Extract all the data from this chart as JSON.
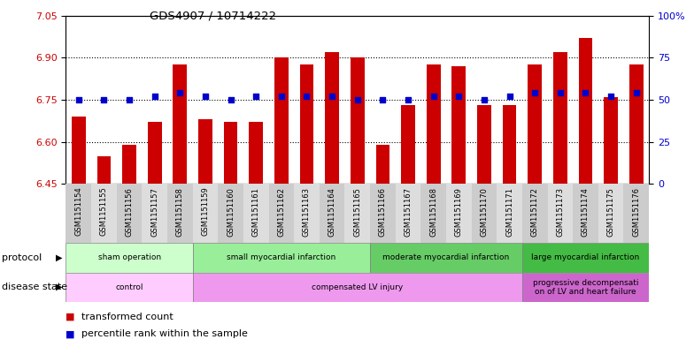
{
  "title": "GDS4907 / 10714222",
  "samples": [
    "GSM1151154",
    "GSM1151155",
    "GSM1151156",
    "GSM1151157",
    "GSM1151158",
    "GSM1151159",
    "GSM1151160",
    "GSM1151161",
    "GSM1151162",
    "GSM1151163",
    "GSM1151164",
    "GSM1151165",
    "GSM1151166",
    "GSM1151167",
    "GSM1151168",
    "GSM1151169",
    "GSM1151170",
    "GSM1151171",
    "GSM1151172",
    "GSM1151173",
    "GSM1151174",
    "GSM1151175",
    "GSM1151176"
  ],
  "transformed_count": [
    6.69,
    6.55,
    6.59,
    6.67,
    6.875,
    6.68,
    6.67,
    6.67,
    6.9,
    6.875,
    6.92,
    6.9,
    6.59,
    6.73,
    6.875,
    6.87,
    6.73,
    6.73,
    6.875,
    6.92,
    6.97,
    6.76,
    6.875
  ],
  "percentile_rank": [
    50,
    50,
    50,
    52,
    54,
    52,
    50,
    52,
    52,
    52,
    52,
    50,
    50,
    50,
    52,
    52,
    50,
    52,
    54,
    54,
    54,
    52,
    54
  ],
  "ylim_left": [
    6.45,
    7.05
  ],
  "ylim_right": [
    0,
    100
  ],
  "left_ticks": [
    6.45,
    6.6,
    6.75,
    6.9,
    7.05
  ],
  "right_ticks": [
    0,
    25,
    50,
    75,
    100
  ],
  "bar_color": "#cc0000",
  "dot_color": "#0000cc",
  "background_color": "#ffffff",
  "protocol_groups": [
    {
      "label": "sham operation",
      "start": 0,
      "end": 4,
      "color": "#ccffcc"
    },
    {
      "label": "small myocardial infarction",
      "start": 5,
      "end": 11,
      "color": "#99ee99"
    },
    {
      "label": "moderate myocardial infarction",
      "start": 12,
      "end": 17,
      "color": "#66cc66"
    },
    {
      "label": "large myocardial infarction",
      "start": 18,
      "end": 22,
      "color": "#44bb44"
    }
  ],
  "disease_groups": [
    {
      "label": "control",
      "start": 0,
      "end": 4,
      "color": "#ffccff"
    },
    {
      "label": "compensated LV injury",
      "start": 5,
      "end": 17,
      "color": "#ee99ee"
    },
    {
      "label": "progressive decompensati\non of LV and heart failure",
      "start": 18,
      "end": 22,
      "color": "#cc66cc"
    }
  ]
}
